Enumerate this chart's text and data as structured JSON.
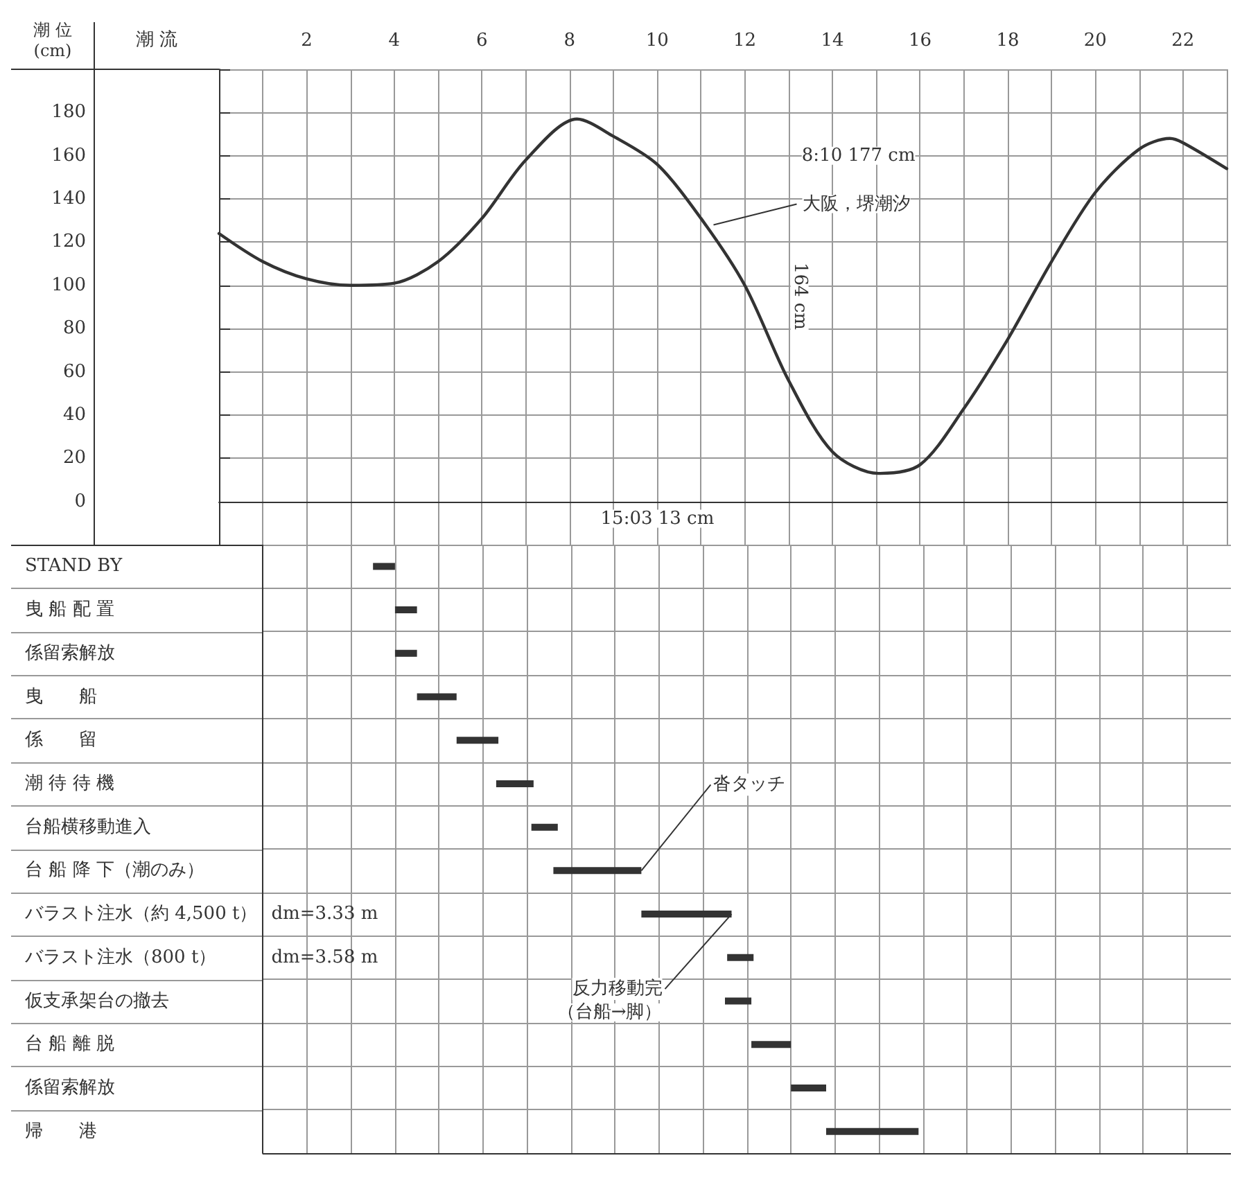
{
  "chart_data": [
    {
      "type": "line",
      "ylabel": "潮 位\n(cm)",
      "x": [
        0,
        1,
        2,
        3,
        4,
        5,
        6,
        7,
        8.17,
        9,
        10,
        11,
        12,
        13,
        14,
        15.05,
        16,
        17,
        18,
        19,
        20,
        21,
        21.7,
        22,
        23
      ],
      "series": [
        {
          "color": "#333333",
          "values": [
            124,
            111,
            103,
            100,
            101,
            111,
            131,
            158,
            177,
            169,
            156,
            131,
            100,
            56,
            23,
            13,
            17,
            43,
            75,
            111,
            143,
            163,
            168,
            166,
            154
          ]
        }
      ],
      "xlim": [
        0,
        23
      ],
      "xticks": [
        {
          "value": 1,
          "label": null
        },
        2,
        {
          "value": 3,
          "label": null
        },
        4,
        {
          "value": 5,
          "label": null
        },
        6,
        {
          "value": 7,
          "label": null
        },
        8,
        {
          "value": 9,
          "label": null
        },
        10,
        {
          "value": 11,
          "label": null
        },
        12,
        {
          "value": 13,
          "label": null
        },
        14,
        {
          "value": 15,
          "label": null
        },
        16,
        {
          "value": 17,
          "label": null
        },
        18,
        {
          "value": 19,
          "label": null
        },
        20,
        {
          "value": 21,
          "label": null
        },
        22,
        {
          "value": 23,
          "label": null
        }
      ],
      "ylim": [
        -20,
        200
      ],
      "yticks": [
        0,
        20,
        40,
        60,
        80,
        100,
        120,
        140,
        160,
        180
      ],
      "grid": true,
      "marker": "none",
      "line_style": "solid",
      "annotations": [
        "8:10 177 cm",
        "15:03 13 cm",
        {
          "text": "大阪，堺潮汐",
          "x": 11.16,
          "y": 128
        },
        "164 cm",
        "潮 流"
      ]
    },
    {
      "type": "bar",
      "orientation": "horizontal",
      "color": "#333333",
      "categories": [
        "STAND BY",
        "曳 船 配 置",
        "係留索解放",
        "曳　　船",
        "係　　留",
        "潮 待 待 機",
        "台船横移動進入",
        "台 船 降 下（潮のみ）",
        "バラスト注水（約 4,500 t）",
        "バラスト注水（800 t）",
        "仮支承架台の撤去",
        "台 船 離 脱",
        "係留索解放",
        "帰　　港"
      ],
      "base": [
        3.5,
        4.0,
        4.0,
        4.5,
        5.4,
        6.3,
        7.1,
        7.6,
        9.6,
        11.55,
        11.5,
        12.1,
        13.0,
        13.8
      ],
      "values": [
        0.5,
        0.5,
        0.5,
        0.9,
        0.95,
        0.85,
        0.6,
        2.0,
        2.05,
        0.6,
        0.6,
        0.9,
        0.8,
        2.1
      ],
      "xlim": [
        1,
        23
      ],
      "xticks": [
        1,
        2,
        3,
        4,
        5,
        6,
        7,
        8,
        9,
        10,
        11,
        12,
        13,
        14,
        15,
        16,
        17,
        18,
        19,
        20,
        21,
        22
      ],
      "grid": true,
      "tick_labels": "y",
      "annotations": [
        "dm=3.33 m",
        "dm=3.58 m",
        {
          "text": "沓タッチ",
          "x": 9.6,
          "y": "台 船 降 下（潮のみ）"
        },
        {
          "text": "反力移動完",
          "x": 11.65,
          "y": "バラスト注水（約 4,500 t）"
        },
        "（台船→脚）"
      ]
    }
  ]
}
